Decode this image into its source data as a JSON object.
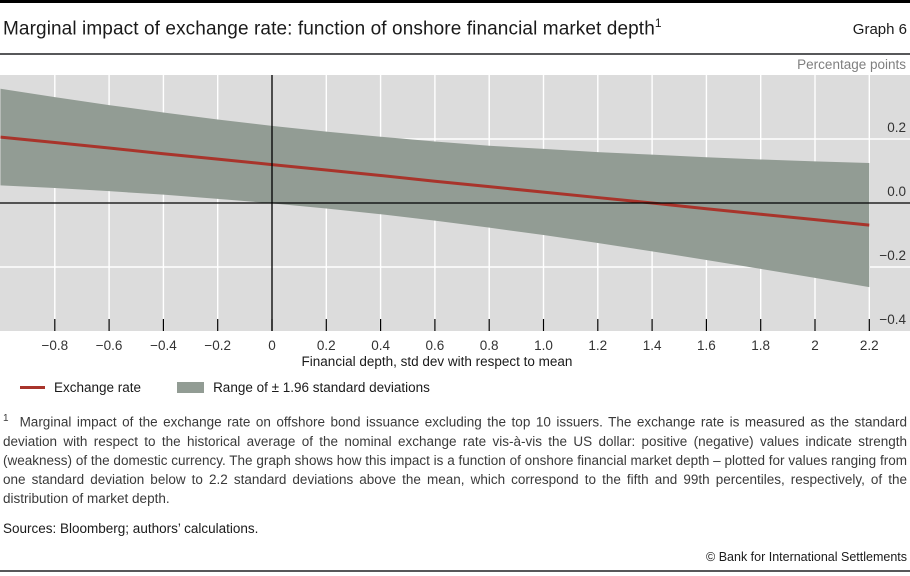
{
  "header": {
    "title": "Marginal impact of exchange rate: function of onshore financial market depth",
    "title_superscript": "1",
    "graph_label": "Graph 6"
  },
  "chart_data": {
    "type": "line",
    "title": "Marginal impact of exchange rate: function of onshore financial market depth",
    "unit_label": "Percentage points",
    "xlabel": "Financial depth, std dev with respect to mean",
    "ylabel": "Percentage points",
    "xlim": [
      -1.0,
      2.35
    ],
    "ylim": [
      -0.4,
      0.4
    ],
    "grid": true,
    "x_tick_values": [
      -0.8,
      -0.6,
      -0.4,
      -0.2,
      0,
      0.2,
      0.4,
      0.6,
      0.8,
      1.0,
      1.2,
      1.4,
      1.6,
      1.8,
      2.0,
      2.2
    ],
    "x_tick_labels": [
      "−0.8",
      "−0.6",
      "−0.4",
      "−0.2",
      "0",
      "0.2",
      "0.4",
      "0.6",
      "0.8",
      "1.0",
      "1.2",
      "1.4",
      "1.6",
      "1.8",
      "2",
      "2.2"
    ],
    "y_tick_values": [
      0.2,
      0.0,
      -0.2,
      -0.4
    ],
    "y_tick_labels": [
      "0.2",
      "0.0",
      "−0.2",
      "−0.4"
    ],
    "zero_line_y": 0,
    "vertical_line_x": 0,
    "x": [
      -1.0,
      -0.8,
      -0.6,
      -0.4,
      -0.2,
      0,
      0.2,
      0.4,
      0.6,
      0.8,
      1.0,
      1.2,
      1.4,
      1.6,
      1.8,
      2.0,
      2.2
    ],
    "series": [
      {
        "name": "Exchange rate",
        "kind": "line",
        "color": "#a8342b",
        "values": [
          0.206,
          0.189,
          0.172,
          0.154,
          0.137,
          0.12,
          0.103,
          0.086,
          0.068,
          0.051,
          0.034,
          0.017,
          0.0,
          -0.018,
          -0.035,
          -0.052,
          -0.069
        ]
      },
      {
        "name": "Range of ± 1.96 standard deviations",
        "kind": "band",
        "color": "#929c94",
        "upper": [
          0.357,
          0.331,
          0.306,
          0.283,
          0.261,
          0.241,
          0.223,
          0.207,
          0.192,
          0.179,
          0.169,
          0.159,
          0.151,
          0.143,
          0.136,
          0.13,
          0.125
        ],
        "lower": [
          0.055,
          0.047,
          0.037,
          0.026,
          0.013,
          -0.001,
          -0.017,
          -0.035,
          -0.055,
          -0.077,
          -0.1,
          -0.125,
          -0.151,
          -0.178,
          -0.206,
          -0.234,
          -0.263
        ]
      }
    ],
    "colors": {
      "plot_bg": "#dcdcdc",
      "grid": "#ffffff",
      "axis": "#000000",
      "tick_text": "#333333"
    },
    "legend_position": "bottom-left"
  },
  "legend": {
    "items": [
      {
        "label": "Exchange rate",
        "swatch": "line",
        "color": "#a8342b"
      },
      {
        "label": "Range of ± 1.96 standard deviations",
        "swatch": "box",
        "color": "#929c94"
      }
    ]
  },
  "footnote": {
    "marker": "1",
    "text": "Marginal impact of the exchange rate on offshore bond issuance excluding the top 10 issuers. The exchange rate is measured as the standard deviation with respect to the historical average of the nominal exchange rate vis-à-vis the US dollar: positive (negative) values indicate strength (weakness) of the domestic currency. The graph shows how this impact is a function of onshore financial market depth – plotted for values ranging from one standard deviation below to 2.2 standard deviations above the mean, which correspond to the fifth and 99th percentiles, respectively, of the distribution of market depth."
  },
  "sources": "Sources: Bloomberg; authors’ calculations.",
  "copyright": "© Bank for International Settlements"
}
